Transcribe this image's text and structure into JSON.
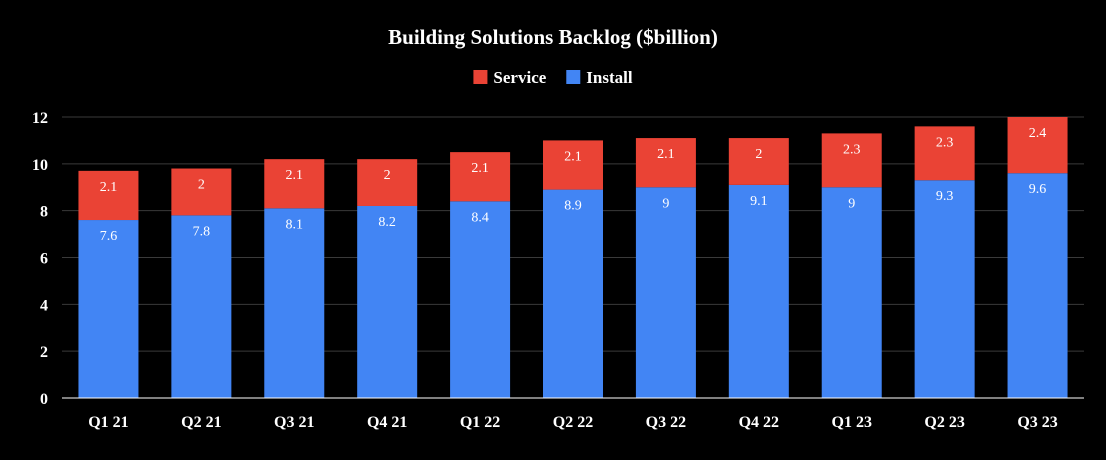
{
  "chart_data": {
    "type": "bar",
    "stacked": true,
    "title": "Building Solutions Backlog ($billion)",
    "xlabel": "",
    "ylabel": "",
    "categories": [
      "Q1 21",
      "Q2 21",
      "Q3 21",
      "Q4 21",
      "Q1 22",
      "Q2 22",
      "Q3 22",
      "Q4 22",
      "Q1 23",
      "Q2 23",
      "Q3 23"
    ],
    "series": [
      {
        "name": "Install",
        "color": "#4285f4",
        "values": [
          7.6,
          7.8,
          8.1,
          8.2,
          8.4,
          8.9,
          9,
          9.1,
          9,
          9.3,
          9.6
        ]
      },
      {
        "name": "Service",
        "color": "#ea4335",
        "values": [
          2.1,
          2,
          2.1,
          2,
          2.1,
          2.1,
          2.1,
          2,
          2.3,
          2.3,
          2.4
        ]
      }
    ],
    "legend_order": [
      "Service",
      "Install"
    ],
    "legend_position": "top-center",
    "ylim": [
      0,
      12
    ],
    "yticks": [
      0,
      2,
      4,
      6,
      8,
      10,
      12
    ],
    "grid": true,
    "background": "#000000",
    "text_color": "#ffffff"
  }
}
